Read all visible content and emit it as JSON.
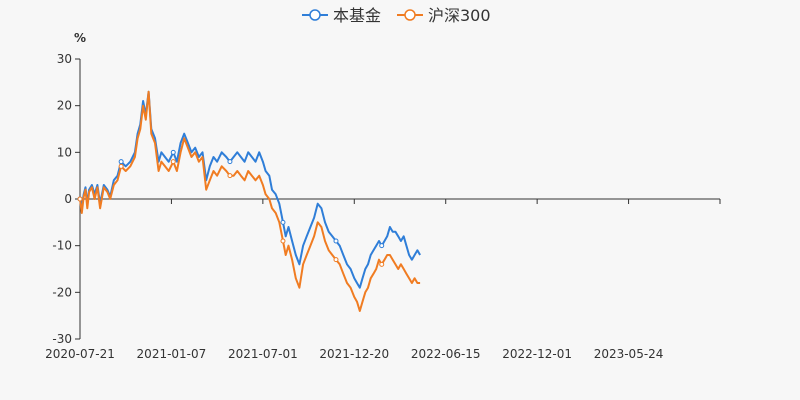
{
  "chart_data": {
    "type": "line",
    "unit": "%",
    "ylim": [
      -30,
      30
    ],
    "yticks": [
      30,
      20,
      10,
      0,
      -10,
      -20,
      -30
    ],
    "x_tick_labels": [
      "2020-07-21",
      "2021-01-07",
      "2021-07-01",
      "2021-12-20",
      "2022-06-15",
      "2022-12-01",
      "2023-05-24"
    ],
    "grid": false,
    "legend_placement": "top-center",
    "series": [
      {
        "name": "本基金",
        "color": "#2f7ed8",
        "values": [
          [
            0,
            0
          ],
          [
            0.02,
            -1.5
          ],
          [
            0.04,
            1
          ],
          [
            0.06,
            2.5
          ],
          [
            0.08,
            -1
          ],
          [
            0.1,
            2
          ],
          [
            0.13,
            3
          ],
          [
            0.16,
            1
          ],
          [
            0.19,
            3
          ],
          [
            0.22,
            -1
          ],
          [
            0.26,
            3
          ],
          [
            0.3,
            2
          ],
          [
            0.33,
            0.5
          ],
          [
            0.37,
            4
          ],
          [
            0.41,
            5
          ],
          [
            0.45,
            8
          ],
          [
            0.5,
            7
          ],
          [
            0.55,
            8
          ],
          [
            0.6,
            10
          ],
          [
            0.63,
            14
          ],
          [
            0.66,
            16
          ],
          [
            0.69,
            21
          ],
          [
            0.72,
            18
          ],
          [
            0.75,
            23
          ],
          [
            0.78,
            15
          ],
          [
            0.82,
            13
          ],
          [
            0.86,
            8
          ],
          [
            0.89,
            10
          ],
          [
            0.93,
            9
          ],
          [
            0.97,
            8
          ],
          [
            1.02,
            10
          ],
          [
            1.06,
            8
          ],
          [
            1.1,
            12
          ],
          [
            1.14,
            14
          ],
          [
            1.18,
            12
          ],
          [
            1.22,
            10
          ],
          [
            1.26,
            11
          ],
          [
            1.3,
            9
          ],
          [
            1.34,
            10
          ],
          [
            1.38,
            4
          ],
          [
            1.42,
            7
          ],
          [
            1.46,
            9
          ],
          [
            1.5,
            8
          ],
          [
            1.55,
            10
          ],
          [
            1.6,
            9
          ],
          [
            1.64,
            8
          ],
          [
            1.68,
            9
          ],
          [
            1.72,
            10
          ],
          [
            1.76,
            9
          ],
          [
            1.8,
            8
          ],
          [
            1.84,
            10
          ],
          [
            1.88,
            9
          ],
          [
            1.92,
            8
          ],
          [
            1.96,
            10
          ],
          [
            2.0,
            8
          ],
          [
            2.03,
            6
          ],
          [
            2.07,
            5
          ],
          [
            2.1,
            2
          ],
          [
            2.14,
            1
          ],
          [
            2.18,
            -1
          ],
          [
            2.22,
            -5
          ],
          [
            2.25,
            -8
          ],
          [
            2.28,
            -6
          ],
          [
            2.32,
            -9
          ],
          [
            2.36,
            -12
          ],
          [
            2.4,
            -14
          ],
          [
            2.44,
            -10
          ],
          [
            2.48,
            -8
          ],
          [
            2.52,
            -6
          ],
          [
            2.56,
            -4
          ],
          [
            2.6,
            -1
          ],
          [
            2.64,
            -2
          ],
          [
            2.68,
            -5
          ],
          [
            2.72,
            -7
          ],
          [
            2.76,
            -8
          ],
          [
            2.8,
            -9
          ],
          [
            2.84,
            -10
          ],
          [
            2.88,
            -12
          ],
          [
            2.92,
            -14
          ],
          [
            2.96,
            -15
          ],
          [
            3.0,
            -17
          ],
          [
            3.03,
            -18
          ],
          [
            3.06,
            -19
          ],
          [
            3.09,
            -17
          ],
          [
            3.12,
            -15
          ],
          [
            3.15,
            -14
          ],
          [
            3.18,
            -12
          ],
          [
            3.21,
            -11
          ],
          [
            3.24,
            -10
          ],
          [
            3.27,
            -9
          ],
          [
            3.3,
            -10
          ],
          [
            3.33,
            -9
          ],
          [
            3.36,
            -8
          ],
          [
            3.39,
            -6
          ],
          [
            3.42,
            -7
          ],
          [
            3.45,
            -7
          ],
          [
            3.48,
            -8
          ],
          [
            3.51,
            -9
          ],
          [
            3.54,
            -8
          ],
          [
            3.57,
            -10
          ],
          [
            3.6,
            -12
          ],
          [
            3.63,
            -13
          ],
          [
            3.66,
            -12
          ],
          [
            3.69,
            -11
          ],
          [
            3.72,
            -12
          ]
        ]
      },
      {
        "name": "沪深300",
        "color": "#f07c22",
        "values": [
          [
            0,
            0
          ],
          [
            0.02,
            -3
          ],
          [
            0.04,
            0.5
          ],
          [
            0.06,
            2
          ],
          [
            0.08,
            -2
          ],
          [
            0.1,
            1.5
          ],
          [
            0.13,
            2.5
          ],
          [
            0.16,
            0
          ],
          [
            0.19,
            2.5
          ],
          [
            0.22,
            -2
          ],
          [
            0.26,
            2.5
          ],
          [
            0.3,
            1.5
          ],
          [
            0.33,
            0
          ],
          [
            0.37,
            3
          ],
          [
            0.41,
            4
          ],
          [
            0.45,
            7
          ],
          [
            0.5,
            6
          ],
          [
            0.55,
            7
          ],
          [
            0.6,
            9
          ],
          [
            0.63,
            13
          ],
          [
            0.66,
            15
          ],
          [
            0.69,
            20
          ],
          [
            0.72,
            17
          ],
          [
            0.75,
            23
          ],
          [
            0.78,
            14
          ],
          [
            0.82,
            12
          ],
          [
            0.86,
            6
          ],
          [
            0.89,
            8
          ],
          [
            0.93,
            7
          ],
          [
            0.97,
            6
          ],
          [
            1.02,
            8
          ],
          [
            1.06,
            6
          ],
          [
            1.1,
            10
          ],
          [
            1.14,
            13
          ],
          [
            1.18,
            11
          ],
          [
            1.22,
            9
          ],
          [
            1.26,
            10
          ],
          [
            1.3,
            8
          ],
          [
            1.34,
            9
          ],
          [
            1.38,
            2
          ],
          [
            1.42,
            4
          ],
          [
            1.46,
            6
          ],
          [
            1.5,
            5
          ],
          [
            1.55,
            7
          ],
          [
            1.6,
            6
          ],
          [
            1.64,
            5
          ],
          [
            1.68,
            5
          ],
          [
            1.72,
            6
          ],
          [
            1.76,
            5
          ],
          [
            1.8,
            4
          ],
          [
            1.84,
            6
          ],
          [
            1.88,
            5
          ],
          [
            1.92,
            4
          ],
          [
            1.96,
            5
          ],
          [
            2.0,
            3
          ],
          [
            2.03,
            1
          ],
          [
            2.07,
            0
          ],
          [
            2.1,
            -2
          ],
          [
            2.14,
            -3
          ],
          [
            2.18,
            -5
          ],
          [
            2.22,
            -9
          ],
          [
            2.25,
            -12
          ],
          [
            2.28,
            -10
          ],
          [
            2.32,
            -13
          ],
          [
            2.36,
            -17
          ],
          [
            2.4,
            -19
          ],
          [
            2.44,
            -14
          ],
          [
            2.48,
            -12
          ],
          [
            2.52,
            -10
          ],
          [
            2.56,
            -8
          ],
          [
            2.6,
            -5
          ],
          [
            2.64,
            -6
          ],
          [
            2.68,
            -9
          ],
          [
            2.72,
            -11
          ],
          [
            2.76,
            -12
          ],
          [
            2.8,
            -13
          ],
          [
            2.84,
            -14
          ],
          [
            2.88,
            -16
          ],
          [
            2.92,
            -18
          ],
          [
            2.96,
            -19
          ],
          [
            3.0,
            -21
          ],
          [
            3.03,
            -22
          ],
          [
            3.06,
            -24
          ],
          [
            3.09,
            -22
          ],
          [
            3.12,
            -20
          ],
          [
            3.15,
            -19
          ],
          [
            3.18,
            -17
          ],
          [
            3.21,
            -16
          ],
          [
            3.24,
            -15
          ],
          [
            3.27,
            -13
          ],
          [
            3.3,
            -14
          ],
          [
            3.33,
            -13
          ],
          [
            3.36,
            -12
          ],
          [
            3.39,
            -12
          ],
          [
            3.42,
            -13
          ],
          [
            3.45,
            -14
          ],
          [
            3.48,
            -15
          ],
          [
            3.51,
            -14
          ],
          [
            3.54,
            -15
          ],
          [
            3.57,
            -16
          ],
          [
            3.6,
            -17
          ],
          [
            3.63,
            -18
          ],
          [
            3.66,
            -17
          ],
          [
            3.69,
            -18
          ],
          [
            3.72,
            -18
          ]
        ]
      }
    ]
  }
}
